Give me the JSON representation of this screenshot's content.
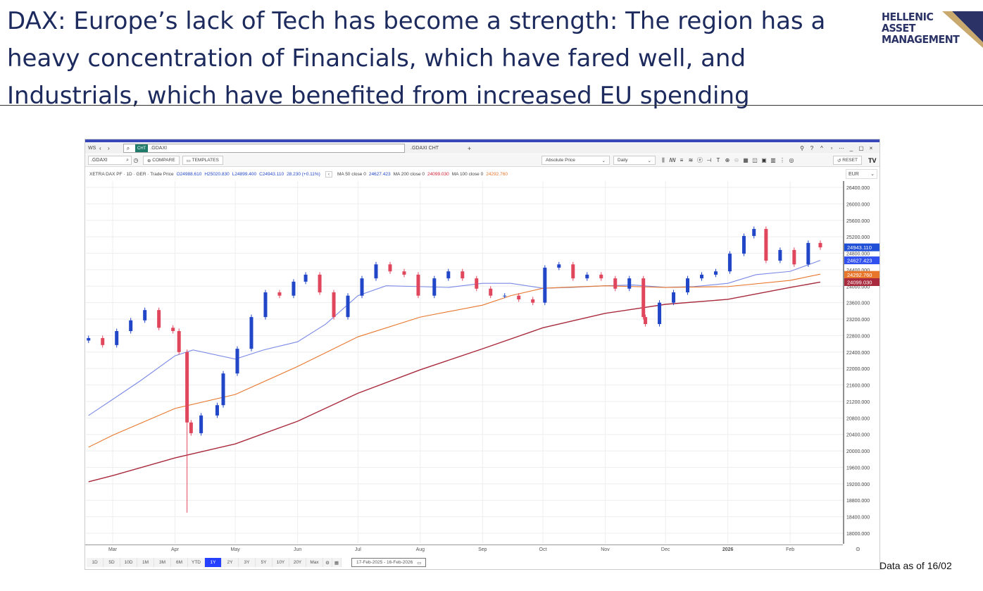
{
  "slide": {
    "title": "DAX: Europe’s lack of Tech has become a strength: The region has a heavy concentration of Financials, which have fared well, and Industrials, which have benefited from increased EU spending",
    "logo": "HELLENIC ASSET MANAGEMENT",
    "logo_lines": [
      "HELLENIC",
      "ASSET",
      "MANAGEMENT"
    ],
    "footnote": "Data as of 16/02"
  },
  "toolbar": {
    "workspace": "WS",
    "search_badge": "CHT",
    "search_value": ".GDAXI",
    "tab_label": ".GDAXI CHT",
    "add_tab": "+",
    "ric_input": ".GDAXI",
    "compare_label": "COMPARE",
    "templates_label": "TEMPLATES",
    "price_type": "Absolute Price",
    "interval": "Daily",
    "reset_label": "RESET",
    "brand": "TV",
    "currency": "EUR"
  },
  "legend": {
    "instrument": "XETRA DAX PF · 1D · GER · Trade Price",
    "open": "O24988.610",
    "high": "H25020.830",
    "low": "L24899.400",
    "close": "C24943.110",
    "change": "28.230 (+0.11%)",
    "ma50_label": "MA 50 close 0",
    "ma50_value": "24627.423",
    "ma200_label": "MA 200 close 0",
    "ma200_value": "24099.030",
    "ma100_label": "MA 100 close 0",
    "ma100_value": "24292.760"
  },
  "range_buttons": [
    "1D",
    "5D",
    "10D",
    "1M",
    "3M",
    "6M",
    "YTD",
    "1Y",
    "2Y",
    "3Y",
    "5Y",
    "10Y",
    "20Y",
    "Max"
  ],
  "range_selected": "1Y",
  "date_range": "17-Feb-2025 - 16-Feb-2026",
  "colors": {
    "up": "#2146c7",
    "down": "#e0475d",
    "ma50": "#7b8ae6",
    "ma100": "#e8762b",
    "ma200": "#a82a3c",
    "last": "#1f4fd6"
  },
  "chart_data": {
    "type": "candlestick",
    "ylim": [
      17800,
      26600
    ],
    "y_ticks": [
      26400,
      26000,
      25600,
      25200,
      24800,
      24400,
      24000,
      23600,
      23200,
      22800,
      22400,
      22000,
      21600,
      21200,
      20800,
      20400,
      20000,
      19600,
      19200,
      18800,
      18400,
      18000
    ],
    "x_range": [
      "2025-02-17",
      "2026-02-16"
    ],
    "x_ticks": [
      [
        "2025-03-01",
        "Mar"
      ],
      [
        "2025-04-01",
        "Apr"
      ],
      [
        "2025-05-01",
        "May"
      ],
      [
        "2025-06-01",
        "Jun"
      ],
      [
        "2025-07-01",
        "Jul"
      ],
      [
        "2025-08-01",
        "Aug"
      ],
      [
        "2025-09-01",
        "Sep"
      ],
      [
        "2025-10-01",
        "Oct"
      ],
      [
        "2025-11-01",
        "Nov"
      ],
      [
        "2025-12-01",
        "Dec"
      ],
      [
        "2026-01-01",
        "2026"
      ],
      [
        "2026-02-01",
        "Feb"
      ]
    ],
    "grid": true,
    "price": [
      [
        "2025-02-17",
        22740
      ],
      [
        "2025-02-24",
        22570
      ],
      [
        "2025-03-03",
        22910
      ],
      [
        "2025-03-10",
        23170
      ],
      [
        "2025-03-17",
        23420
      ],
      [
        "2025-03-24",
        22990
      ],
      [
        "2025-03-31",
        22910
      ],
      [
        "2025-04-03",
        22400
      ],
      [
        "2025-04-07",
        20690
      ],
      [
        "2025-04-09",
        20430
      ],
      [
        "2025-04-14",
        20860
      ],
      [
        "2025-04-22",
        21110
      ],
      [
        "2025-04-25",
        21880
      ],
      [
        "2025-05-02",
        22480
      ],
      [
        "2025-05-09",
        23250
      ],
      [
        "2025-05-16",
        23850
      ],
      [
        "2025-05-23",
        23770
      ],
      [
        "2025-05-30",
        24110
      ],
      [
        "2025-06-05",
        24280
      ],
      [
        "2025-06-12",
        23850
      ],
      [
        "2025-06-19",
        23250
      ],
      [
        "2025-06-26",
        23770
      ],
      [
        "2025-07-03",
        24190
      ],
      [
        "2025-07-10",
        24530
      ],
      [
        "2025-07-17",
        24360
      ],
      [
        "2025-07-24",
        24280
      ],
      [
        "2025-07-31",
        23770
      ],
      [
        "2025-08-08",
        24190
      ],
      [
        "2025-08-15",
        24360
      ],
      [
        "2025-08-22",
        24190
      ],
      [
        "2025-08-29",
        23940
      ],
      [
        "2025-09-05",
        23770
      ],
      [
        "2025-09-12",
        23770
      ],
      [
        "2025-09-19",
        23680
      ],
      [
        "2025-09-26",
        23600
      ],
      [
        "2025-10-02",
        24450
      ],
      [
        "2025-10-09",
        24530
      ],
      [
        "2025-10-16",
        24190
      ],
      [
        "2025-10-23",
        24280
      ],
      [
        "2025-10-30",
        24190
      ],
      [
        "2025-11-06",
        23940
      ],
      [
        "2025-11-13",
        24190
      ],
      [
        "2025-11-20",
        23250
      ],
      [
        "2025-11-21",
        23080
      ],
      [
        "2025-11-28",
        23600
      ],
      [
        "2025-12-05",
        23850
      ],
      [
        "2025-12-12",
        24190
      ],
      [
        "2025-12-19",
        24280
      ],
      [
        "2025-12-26",
        24360
      ],
      [
        "2026-01-02",
        24790
      ],
      [
        "2026-01-09",
        25220
      ],
      [
        "2026-01-14",
        25390
      ],
      [
        "2026-01-20",
        24620
      ],
      [
        "2026-01-27",
        24880
      ],
      [
        "2026-02-03",
        24530
      ],
      [
        "2026-02-10",
        25050
      ],
      [
        "2026-02-16",
        24943.11
      ]
    ],
    "price_low": [
      "2025-04-07",
      18500
    ],
    "series": [
      {
        "name": "MA 50 close 0",
        "values": [
          [
            "2025-02-17",
            20860
          ],
          [
            "2025-03-01",
            21250
          ],
          [
            "2025-03-15",
            21710
          ],
          [
            "2025-04-01",
            22310
          ],
          [
            "2025-04-10",
            22450
          ],
          [
            "2025-05-01",
            22230
          ],
          [
            "2025-05-15",
            22450
          ],
          [
            "2025-06-01",
            22650
          ],
          [
            "2025-06-15",
            23080
          ],
          [
            "2025-07-01",
            23770
          ],
          [
            "2025-07-15",
            24010
          ],
          [
            "2025-08-01",
            23990
          ],
          [
            "2025-08-15",
            23970
          ],
          [
            "2025-09-01",
            24070
          ],
          [
            "2025-09-15",
            24070
          ],
          [
            "2025-10-01",
            23950
          ],
          [
            "2025-10-15",
            23970
          ],
          [
            "2025-11-01",
            24010
          ],
          [
            "2025-11-15",
            24030
          ],
          [
            "2025-12-01",
            23970
          ],
          [
            "2025-12-15",
            23990
          ],
          [
            "2026-01-01",
            24070
          ],
          [
            "2026-01-15",
            24280
          ],
          [
            "2026-02-01",
            24360
          ],
          [
            "2026-02-16",
            24627.423
          ]
        ]
      },
      {
        "name": "MA 100 close 0",
        "values": [
          [
            "2025-02-17",
            20090
          ],
          [
            "2025-03-01",
            20380
          ],
          [
            "2025-04-01",
            21030
          ],
          [
            "2025-05-01",
            21370
          ],
          [
            "2025-06-01",
            22050
          ],
          [
            "2025-07-01",
            22770
          ],
          [
            "2025-08-01",
            23250
          ],
          [
            "2025-09-01",
            23540
          ],
          [
            "2025-09-15",
            23770
          ],
          [
            "2025-10-01",
            23950
          ],
          [
            "2025-11-01",
            24010
          ],
          [
            "2025-12-01",
            23970
          ],
          [
            "2026-01-01",
            23990
          ],
          [
            "2026-02-01",
            24140
          ],
          [
            "2026-02-16",
            24292.76
          ]
        ]
      },
      {
        "name": "MA 200 close 0",
        "values": [
          [
            "2025-02-17",
            19250
          ],
          [
            "2025-03-01",
            19400
          ],
          [
            "2025-04-01",
            19830
          ],
          [
            "2025-05-01",
            20170
          ],
          [
            "2025-06-01",
            20720
          ],
          [
            "2025-07-01",
            21400
          ],
          [
            "2025-08-01",
            21970
          ],
          [
            "2025-09-01",
            22480
          ],
          [
            "2025-10-01",
            22990
          ],
          [
            "2025-11-01",
            23340
          ],
          [
            "2025-12-01",
            23560
          ],
          [
            "2026-01-01",
            23680
          ],
          [
            "2026-02-01",
            23970
          ],
          [
            "2026-02-16",
            24099.03
          ]
        ]
      }
    ],
    "last_values": [
      "24943.110",
      "24627.423",
      "24292.760",
      "24099.030"
    ]
  }
}
